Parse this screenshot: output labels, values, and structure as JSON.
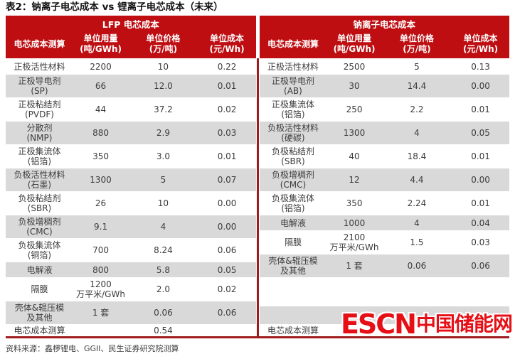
{
  "title": "表2：钠离子电芯成本 vs 锂离子电芯成本（未来）",
  "source": "资料来源：鑫椤锂电、GGII、民生证券研究院测算",
  "logo": {
    "latin": "ESCN",
    "cn": "中国储能网"
  },
  "colors": {
    "header_red": "#be0e12",
    "line_red": "#9e1b1e",
    "row_gray": "#d9d9d9",
    "logo_red": "#e60f15"
  },
  "columns": {
    "item": "电芯成本测算",
    "usage": "单位用量",
    "usage_unit": "(吨/GWh)",
    "price": "单位价格",
    "price_unit": "(万/吨)",
    "cost": "单位成本",
    "cost_unit": "(元/Wh)"
  },
  "left_table": {
    "group_title": "LFP 电芯成本",
    "rows": [
      {
        "item": "正极活性材料",
        "usage": "2200",
        "price": "10",
        "cost": "0.22"
      },
      {
        "item": "正极导电剂",
        "item2": "(SP)",
        "usage": "66",
        "price": "12.0",
        "cost": "0.01"
      },
      {
        "item": "正极粘结剂",
        "item2": "(PVDF)",
        "usage": "44",
        "price": "37.2",
        "cost": "0.02"
      },
      {
        "item": "分散剂",
        "item2": "(NMP)",
        "usage": "880",
        "price": "2.9",
        "cost": "0.03"
      },
      {
        "item": "正极集流体",
        "item2": "(铝箔)",
        "usage": "350",
        "price": "3.0",
        "cost": "0.01"
      },
      {
        "item": "负极活性材料",
        "item2": "(石墨)",
        "usage": "1300",
        "price": "5",
        "cost": "0.07"
      },
      {
        "item": "负极粘结剂",
        "item2": "(SBR)",
        "usage": "26",
        "price": "10",
        "cost": "0.00"
      },
      {
        "item": "负极增稠剂",
        "item2": "(CMC)",
        "usage": "9.1",
        "price": "4",
        "cost": "0.00"
      },
      {
        "item": "负极集流体",
        "item2": "(铜箔)",
        "usage": "700",
        "price": "8.24",
        "cost": "0.06"
      },
      {
        "item": "电解液",
        "usage": "800",
        "price": "5.8",
        "cost": "0.05"
      },
      {
        "item": "隔膜",
        "usage": "1200",
        "usage2": "万平米/GWh",
        "price": "2.0",
        "cost": "0.02"
      },
      {
        "item": "壳体&辊压模",
        "item2": "及其他",
        "usage": "1 套",
        "price": "0.06",
        "cost": "0.06"
      }
    ],
    "total": {
      "label": "电芯成本测算",
      "value": "0.54"
    }
  },
  "right_table": {
    "group_title": "钠离子电芯成本",
    "rows": [
      {
        "item": "正极活性材料",
        "usage": "2500",
        "price": "5",
        "cost": "0.13"
      },
      {
        "item": "正极导电剂",
        "item2": "(AB)",
        "usage": "30",
        "price": "14.4",
        "cost": "0.00"
      },
      {
        "item": "正极集流体",
        "item2": "(铝箔)",
        "usage": "250",
        "price": "2.2",
        "cost": "0.01"
      },
      {
        "item": "负极活性材料",
        "item2": "(硬碳)",
        "usage": "1300",
        "price": "4",
        "cost": "0.05"
      },
      {
        "item": "负极粘结剂",
        "item2": "(SBR)",
        "usage": "40",
        "price": "18.4",
        "cost": "0.01"
      },
      {
        "item": "负极增稠剂",
        "item2": "(CMC)",
        "usage": "12",
        "price": "4.4",
        "cost": "0.00"
      },
      {
        "item": "负极集流体",
        "item2": "(铝箔)",
        "usage": "350",
        "price": "2.24",
        "cost": "0.01"
      },
      {
        "item": "电解液",
        "usage": "1000",
        "price": "4",
        "cost": "0.04"
      },
      {
        "item": "隔膜",
        "usage": "2100",
        "usage2": "万平米/GWh",
        "price": "1.5",
        "cost": "0.03"
      },
      {
        "item": "壳体&辊压模",
        "item2": "及其他",
        "usage": "1 套",
        "price": "0.06",
        "cost": "0.06"
      },
      {
        "empty": true
      },
      {
        "empty": true
      }
    ],
    "total": {
      "label": "电芯成本测算",
      "value": ""
    }
  }
}
